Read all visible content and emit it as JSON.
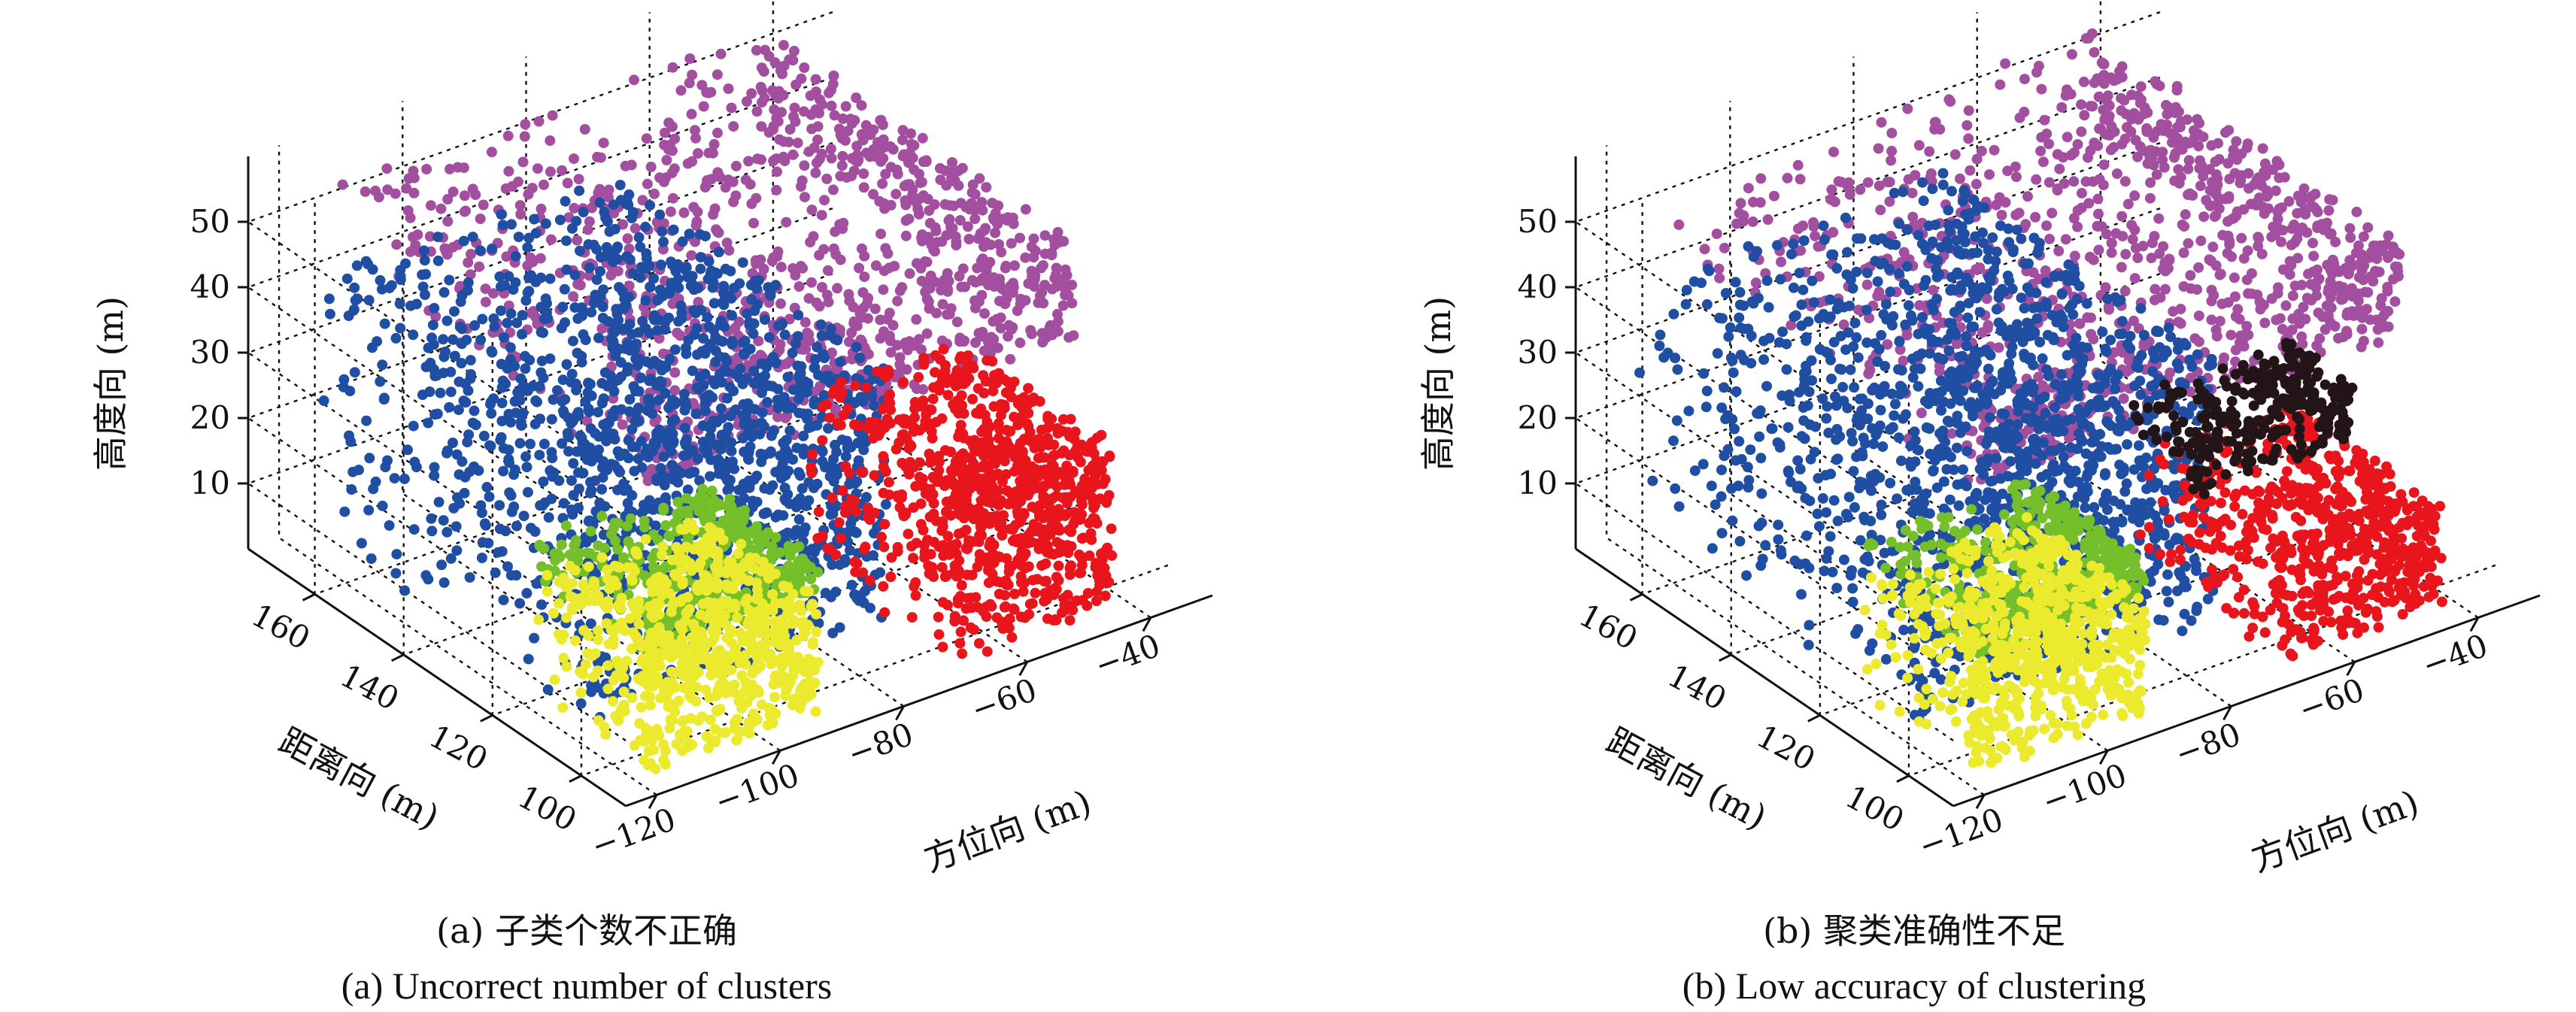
{
  "chart_data": [
    {
      "type": "scatter",
      "subtitle": "(a) 子类个数不正确",
      "caption": "(a) Uncorrect number of clusters",
      "xlabel": "方位向 (m)",
      "ylabel": "距离向 (m)",
      "zlabel": "高度向 (m)",
      "xticks": [
        "−120",
        "−100",
        "−80",
        "−60",
        "−40"
      ],
      "yticks": [
        "100",
        "120",
        "140",
        "160"
      ],
      "zticks": [
        "10",
        "20",
        "30",
        "40",
        "50"
      ],
      "xlim": [
        -125,
        -30
      ],
      "ylim": [
        90,
        175
      ],
      "zlim": [
        0,
        60
      ],
      "grid": true,
      "series": [
        {
          "color": "#a24f9f",
          "points": 1100,
          "x": [
            -115,
            -45
          ],
          "y": [
            100,
            170
          ],
          "z": [
            40,
            55
          ]
        },
        {
          "color": "#1f4ea3",
          "points": 1500,
          "x": [
            -118,
            -68
          ],
          "y": [
            110,
            172
          ],
          "z": [
            0,
            40
          ]
        },
        {
          "color": "#74bf2a",
          "points": 420,
          "x": [
            -118,
            -90
          ],
          "y": [
            95,
            122
          ],
          "z": [
            18,
            24
          ]
        },
        {
          "color": "#ecea2f",
          "points": 700,
          "x": [
            -118,
            -90
          ],
          "y": [
            95,
            122
          ],
          "z": [
            0,
            18
          ]
        },
        {
          "color": "#e8161c",
          "points": 900,
          "x": [
            -68,
            -42
          ],
          "y": [
            95,
            130
          ],
          "z": [
            0,
            25
          ]
        }
      ]
    },
    {
      "type": "scatter",
      "subtitle": "(b) 聚类准确性不足",
      "caption": "(b) Low accuracy of clustering",
      "xlabel": "方位向 (m)",
      "ylabel": "距离向 (m)",
      "zlabel": "高度向 (m)",
      "xticks": [
        "−120",
        "−100",
        "−80",
        "−60",
        "−40"
      ],
      "yticks": [
        "100",
        "120",
        "140",
        "160"
      ],
      "zticks": [
        "10",
        "20",
        "30",
        "40",
        "50"
      ],
      "xlim": [
        -125,
        -30
      ],
      "ylim": [
        90,
        175
      ],
      "zlim": [
        0,
        60
      ],
      "grid": true,
      "series": [
        {
          "color": "#a24f9f",
          "points": 1100,
          "x": [
            -115,
            -45
          ],
          "y": [
            100,
            170
          ],
          "z": [
            40,
            55
          ]
        },
        {
          "color": "#1f4ea3",
          "points": 1500,
          "x": [
            -118,
            -68
          ],
          "y": [
            110,
            172
          ],
          "z": [
            0,
            40
          ]
        },
        {
          "color": "#74bf2a",
          "points": 420,
          "x": [
            -118,
            -90
          ],
          "y": [
            95,
            122
          ],
          "z": [
            18,
            24
          ]
        },
        {
          "color": "#ecea2f",
          "points": 700,
          "x": [
            -118,
            -90
          ],
          "y": [
            95,
            122
          ],
          "z": [
            0,
            18
          ]
        },
        {
          "color": "#e8161c",
          "points": 650,
          "x": [
            -68,
            -42
          ],
          "y": [
            95,
            130
          ],
          "z": [
            0,
            16
          ]
        },
        {
          "color": "#231517",
          "points": 300,
          "x": [
            -68,
            -42
          ],
          "y": [
            115,
            130
          ],
          "z": [
            16,
            25
          ]
        }
      ]
    }
  ]
}
